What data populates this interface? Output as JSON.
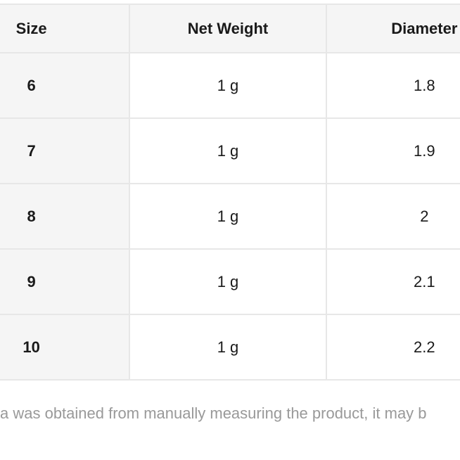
{
  "table": {
    "columns": [
      "Size",
      "Net Weight",
      "Diameter"
    ],
    "rows": [
      {
        "size": "6",
        "net_weight": "1 g",
        "diameter": "1.8"
      },
      {
        "size": "7",
        "net_weight": "1 g",
        "diameter": "1.9"
      },
      {
        "size": "8",
        "net_weight": "1 g",
        "diameter": "2"
      },
      {
        "size": "9",
        "net_weight": "1 g",
        "diameter": "2.1"
      },
      {
        "size": "10",
        "net_weight": "1 g",
        "diameter": "2.2"
      }
    ]
  },
  "footnote": {
    "visible_text": "a was obtained from manually measuring the product, it may b"
  },
  "colors": {
    "page_bg": "#ffffff",
    "header_bg": "#f5f5f5",
    "row_label_bg": "#f5f5f5",
    "border": "#e7e7e7",
    "text": "#1a1a1a",
    "footnote_text": "#999999"
  }
}
